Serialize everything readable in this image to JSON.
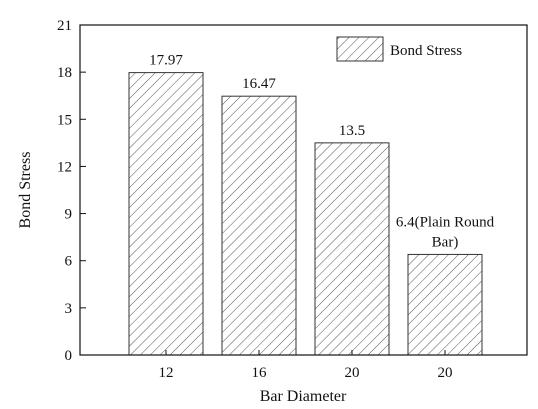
{
  "chart_data": {
    "type": "bar",
    "title": "",
    "xlabel": "Bar Diameter",
    "ylabel": "Bond Stress",
    "categories": [
      "12",
      "16",
      "20",
      "20"
    ],
    "series": [
      {
        "name": "Bond Stress",
        "values": [
          17.97,
          16.47,
          13.5,
          6.4
        ]
      }
    ],
    "data_labels": [
      "17.97",
      "16.47",
      "13.5",
      "6.4(Plain Round Bar)"
    ],
    "ylim": [
      0,
      21
    ],
    "yticks": [
      0,
      3,
      6,
      9,
      12,
      15,
      18,
      21
    ],
    "grid": false,
    "legend": "top-right",
    "fill_pattern": "diagonal-hatch",
    "colors": {
      "bar_fill": "#ffffff",
      "hatch": "#555555",
      "axis": "#111111"
    }
  }
}
